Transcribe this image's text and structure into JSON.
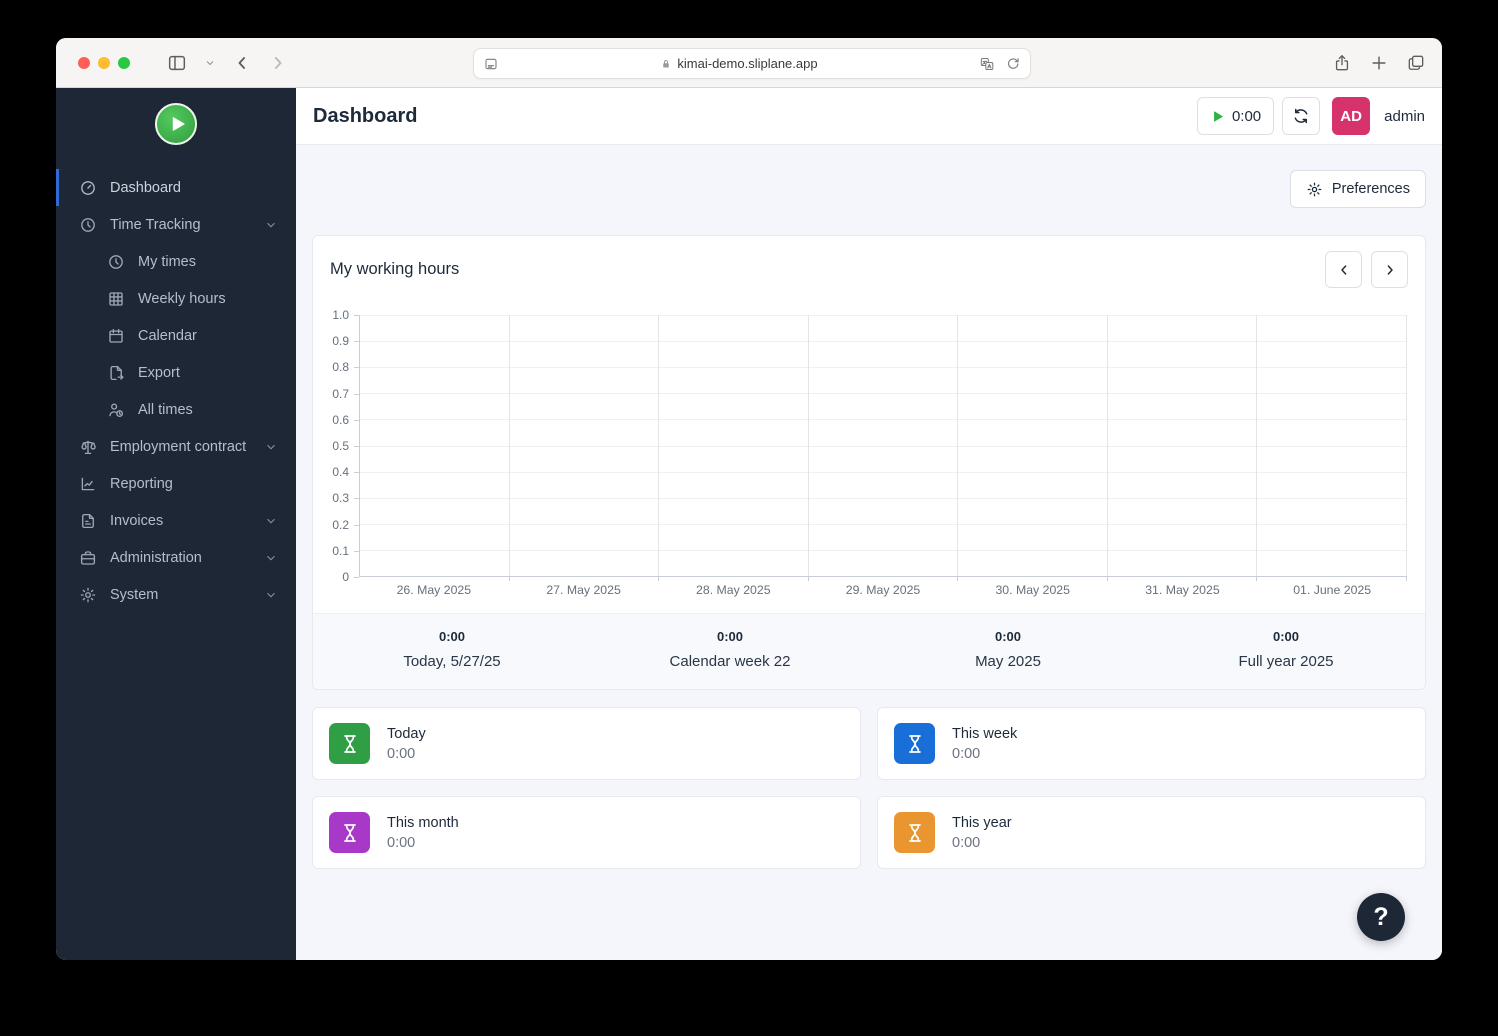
{
  "browser": {
    "url": "kimai-demo.sliplane.app"
  },
  "sidebar": {
    "items": [
      {
        "label": "Dashboard",
        "icon": "gauge-icon",
        "active": true
      },
      {
        "label": "Time Tracking",
        "icon": "clock-icon",
        "expandable": true
      },
      {
        "label": "My times",
        "icon": "clock-icon",
        "child": true
      },
      {
        "label": "Weekly hours",
        "icon": "grid-icon",
        "child": true
      },
      {
        "label": "Calendar",
        "icon": "calendar-icon",
        "child": true
      },
      {
        "label": "Export",
        "icon": "export-icon",
        "child": true
      },
      {
        "label": "All times",
        "icon": "users-clock-icon",
        "child": true
      },
      {
        "label": "Employment contract",
        "icon": "scales-icon",
        "expandable": true
      },
      {
        "label": "Reporting",
        "icon": "chart-line-icon"
      },
      {
        "label": "Invoices",
        "icon": "invoice-icon",
        "expandable": true
      },
      {
        "label": "Administration",
        "icon": "briefcase-icon",
        "expandable": true
      },
      {
        "label": "System",
        "icon": "gear-icon",
        "expandable": true
      }
    ]
  },
  "header": {
    "title": "Dashboard",
    "timer": "0:00",
    "play_color": "#2eb344",
    "avatar_initials": "AD",
    "avatar_color": "#d6336c",
    "username": "admin"
  },
  "toolbar": {
    "preferences_label": "Preferences"
  },
  "chart_card": {
    "title": "My working hours"
  },
  "chart_data": {
    "type": "line",
    "title": "My working hours",
    "x": [
      "26. May 2025",
      "27. May 2025",
      "28. May 2025",
      "29. May 2025",
      "30. May 2025",
      "31. May 2025",
      "01. June 2025"
    ],
    "series": [],
    "note": "chart area is empty - no data points plotted",
    "ylim": [
      0,
      1.0
    ],
    "yticks": [
      "1.0",
      "0.9",
      "0.8",
      "0.7",
      "0.6",
      "0.5",
      "0.4",
      "0.3",
      "0.2",
      "0.1",
      "0"
    ],
    "grid": true,
    "legend": false
  },
  "summary": [
    {
      "value": "0:00",
      "label": "Today, 5/27/25"
    },
    {
      "value": "0:00",
      "label": "Calendar week 22"
    },
    {
      "value": "0:00",
      "label": "May 2025"
    },
    {
      "value": "0:00",
      "label": "Full year 2025"
    }
  ],
  "stat_cards": [
    {
      "title": "Today",
      "value": "0:00",
      "color": "#2f9e44",
      "icon": "hourglass-icon"
    },
    {
      "title": "This week",
      "value": "0:00",
      "color": "#1a6ed8",
      "icon": "hourglass-icon"
    },
    {
      "title": "This month",
      "value": "0:00",
      "color": "#a838c8",
      "icon": "hourglass-icon"
    },
    {
      "title": "This year",
      "value": "0:00",
      "color": "#ea9630",
      "icon": "hourglass-icon"
    }
  ],
  "help": {
    "label": "?"
  }
}
